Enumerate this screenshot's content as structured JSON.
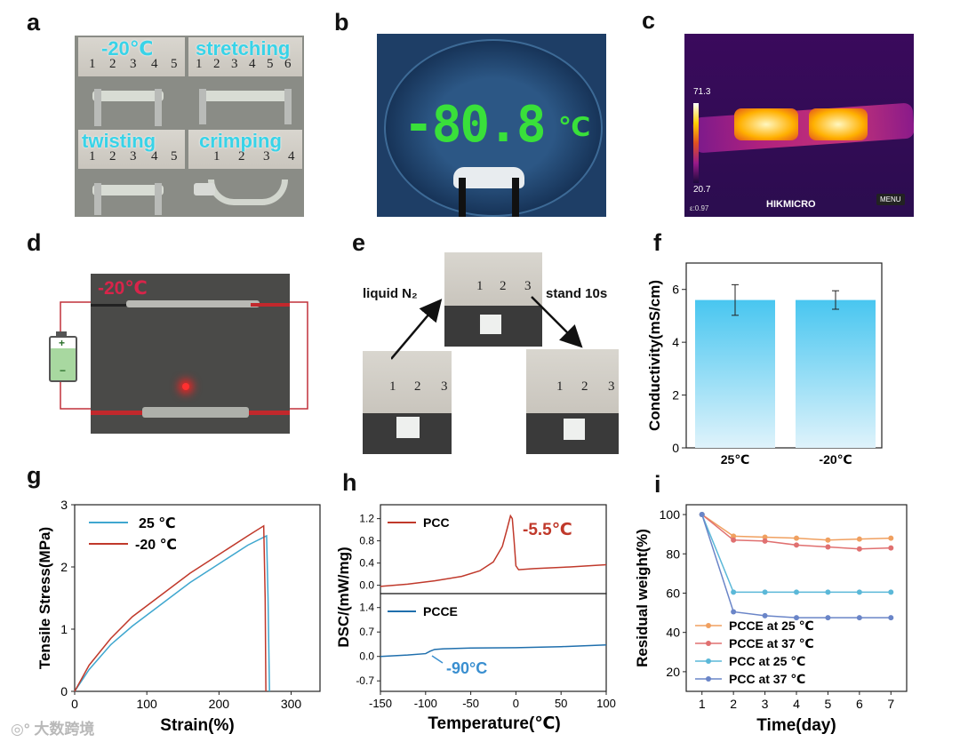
{
  "panels": {
    "a": "a",
    "b": "b",
    "c": "c",
    "d": "d",
    "e": "e",
    "f": "f",
    "g": "g",
    "h": "h",
    "i": "i"
  },
  "panel_a": {
    "captions": [
      "-20℃",
      "stretching",
      "twisting",
      "crimping"
    ],
    "ruler_numbers": [
      [
        "1",
        "2",
        "3",
        "4",
        "5"
      ],
      [
        "1",
        "2",
        "3",
        "4",
        "5",
        "6"
      ],
      [
        "1",
        "2",
        "3",
        "4",
        "5"
      ],
      [
        "1",
        "2",
        "3",
        "4"
      ]
    ]
  },
  "panel_b": {
    "display": "-80.8",
    "unit": "℃"
  },
  "panel_c": {
    "max": "71.3",
    "min": "20.7",
    "brand": "HIKMICRO",
    "menu": "MENU",
    "emissivity": "ε:0.97"
  },
  "panel_d": {
    "temp": "-20℃",
    "battery_plus": "+",
    "battery_minus": "−"
  },
  "panel_e": {
    "left_label": "liquid N₂",
    "right_label": "stand 10s",
    "ruler_numbers": [
      "1",
      "2",
      "3"
    ]
  },
  "chart_data": [
    {
      "id": "f",
      "type": "bar",
      "categories": [
        "25℃",
        "-20℃"
      ],
      "values": [
        5.6,
        5.6
      ],
      "errors": [
        0.58,
        0.35
      ],
      "ylabel": "Conductivity(mS/cm)",
      "ylim": [
        0,
        7
      ],
      "yticks": [
        "0",
        "2",
        "4",
        "6"
      ]
    },
    {
      "id": "g",
      "type": "line",
      "xlabel": "Strain(%)",
      "ylabel": "Tensile Stress(MPa)",
      "xlim": [
        0,
        340
      ],
      "ylim": [
        0,
        3
      ],
      "xticks": [
        "0",
        "100",
        "200",
        "300"
      ],
      "yticks": [
        "0",
        "1",
        "2",
        "3"
      ],
      "series": [
        {
          "name": "25 ℃",
          "color": "#3fa7cf",
          "points": [
            [
              0,
              0
            ],
            [
              20,
              0.35
            ],
            [
              50,
              0.75
            ],
            [
              80,
              1.05
            ],
            [
              120,
              1.4
            ],
            [
              160,
              1.75
            ],
            [
              200,
              2.05
            ],
            [
              240,
              2.35
            ],
            [
              266,
              2.5
            ],
            [
              268,
              1.5
            ],
            [
              270,
              0
            ]
          ]
        },
        {
          "name": "-20 ℃",
          "color": "#c0392b",
          "points": [
            [
              0,
              0
            ],
            [
              20,
              0.42
            ],
            [
              50,
              0.85
            ],
            [
              80,
              1.2
            ],
            [
              120,
              1.55
            ],
            [
              160,
              1.9
            ],
            [
              200,
              2.2
            ],
            [
              240,
              2.5
            ],
            [
              262,
              2.66
            ],
            [
              264,
              1.5
            ],
            [
              265,
              0
            ]
          ]
        }
      ]
    },
    {
      "id": "h",
      "type": "line",
      "xlabel": "Temperature(℃)",
      "ylabel": "DSC/(mW/mg)",
      "xlim": [
        -150,
        100
      ],
      "xticks": [
        "-150",
        "-100",
        "-50",
        "0",
        "50",
        "100"
      ],
      "subplots": [
        {
          "name": "PCC",
          "color": "#c0392b",
          "ylim": [
            -0.15,
            1.45
          ],
          "yticks": [
            "0.0",
            "0.4",
            "0.8",
            "1.2"
          ],
          "annotation": "-5.5℃",
          "points": [
            [
              -150,
              -0.02
            ],
            [
              -120,
              0.02
            ],
            [
              -90,
              0.08
            ],
            [
              -60,
              0.16
            ],
            [
              -40,
              0.26
            ],
            [
              -25,
              0.42
            ],
            [
              -15,
              0.7
            ],
            [
              -10,
              1.0
            ],
            [
              -6,
              1.25
            ],
            [
              -4,
              1.2
            ],
            [
              -2,
              0.8
            ],
            [
              0,
              0.35
            ],
            [
              3,
              0.28
            ],
            [
              20,
              0.3
            ],
            [
              60,
              0.33
            ],
            [
              100,
              0.37
            ]
          ]
        },
        {
          "name": "PCCE",
          "color": "#1f6fad",
          "ylim": [
            -1.0,
            1.8
          ],
          "yticks": [
            "-0.7",
            "0.0",
            "0.7",
            "1.4"
          ],
          "annotation": "-90°C",
          "points": [
            [
              -150,
              0.0
            ],
            [
              -120,
              0.04
            ],
            [
              -100,
              0.08
            ],
            [
              -95,
              0.15
            ],
            [
              -90,
              0.2
            ],
            [
              -80,
              0.22
            ],
            [
              -50,
              0.24
            ],
            [
              0,
              0.25
            ],
            [
              50,
              0.28
            ],
            [
              100,
              0.33
            ]
          ]
        }
      ]
    },
    {
      "id": "i",
      "type": "line",
      "xlabel": "Time(day)",
      "ylabel": "Residual weight(%)",
      "xlim": [
        0.5,
        7.5
      ],
      "ylim": [
        10,
        105
      ],
      "xticks": [
        "1",
        "2",
        "3",
        "4",
        "5",
        "6",
        "7"
      ],
      "yticks": [
        "20",
        "40",
        "60",
        "80",
        "100"
      ],
      "x": [
        1,
        2,
        3,
        4,
        5,
        6,
        7
      ],
      "series": [
        {
          "name": "PCCE at 25 ℃",
          "color": "#f0a060",
          "values": [
            100,
            89,
            88.5,
            88,
            87,
            87.5,
            88
          ]
        },
        {
          "name": "PCCE at 37 ℃",
          "color": "#e07070",
          "values": [
            100,
            87,
            86.5,
            84.5,
            83.5,
            82.5,
            83
          ]
        },
        {
          "name": "PCC at 25 ℃",
          "color": "#5bb8d8",
          "values": [
            100,
            60.5,
            60.5,
            60.5,
            60.5,
            60.5,
            60.5
          ]
        },
        {
          "name": "PCC at 37 ℃",
          "color": "#6a85c8",
          "values": [
            100,
            50.5,
            48.5,
            47.5,
            47.5,
            47.5,
            47.5
          ]
        }
      ]
    }
  ],
  "watermark": "大数跨境"
}
